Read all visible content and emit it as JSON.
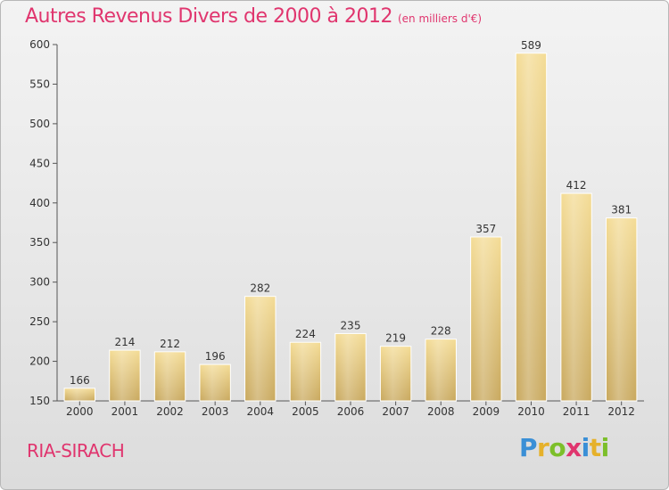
{
  "header": {
    "title": "Autres Revenus Divers de 2000 à 2012",
    "subtitle": "(en milliers d'€)"
  },
  "footer": {
    "commune": "RIA-SIRACH",
    "logo": {
      "letters": [
        "P",
        "r",
        "o",
        "x",
        "i",
        "t",
        "i"
      ],
      "colors": [
        "#3a8fd6",
        "#e6b12a",
        "#7cbf2a",
        "#e0356e",
        "#3a8fd6",
        "#e6b12a",
        "#7cbf2a"
      ]
    }
  },
  "chart_data": {
    "type": "bar",
    "title": "Autres Revenus Divers de 2000 à 2012",
    "subtitle": "(en milliers d'€)",
    "categories": [
      "2000",
      "2001",
      "2002",
      "2003",
      "2004",
      "2005",
      "2006",
      "2007",
      "2008",
      "2009",
      "2010",
      "2011",
      "2012"
    ],
    "values": [
      166,
      214,
      212,
      196,
      282,
      224,
      235,
      219,
      228,
      357,
      589,
      412,
      381
    ],
    "ylim": [
      150,
      600
    ],
    "yticks": [
      150,
      200,
      250,
      300,
      350,
      400,
      450,
      500,
      550,
      600
    ],
    "grid": false,
    "bar_color": "#e8c97e"
  }
}
